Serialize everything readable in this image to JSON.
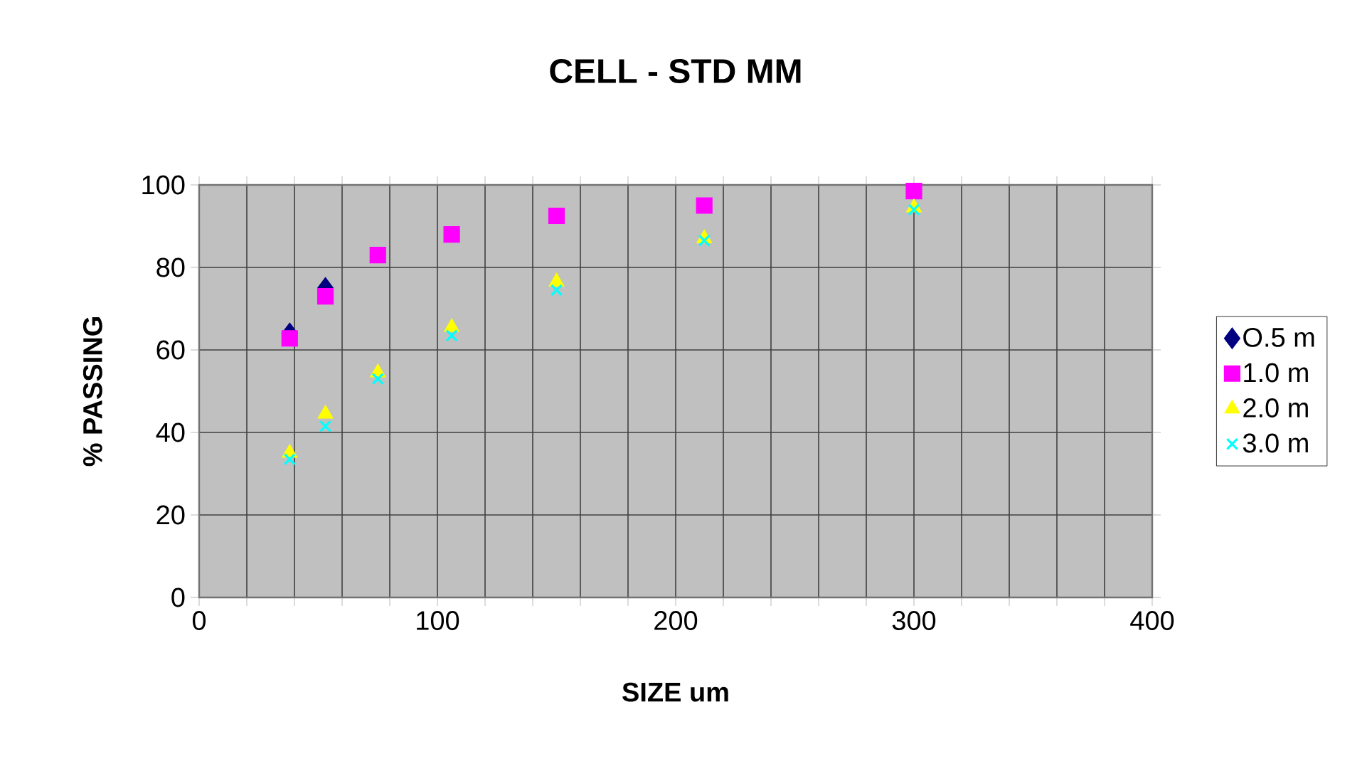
{
  "chart_data": {
    "type": "scatter",
    "title": "CELL  - STD MM",
    "xlabel": "SIZE um",
    "ylabel": "% PASSING",
    "x": [
      38,
      53,
      75,
      106,
      150,
      212,
      300
    ],
    "series": [
      {
        "name": "O.5 m",
        "color": "#000080",
        "marker": "diamond",
        "values": [
          64,
          75,
          null,
          null,
          null,
          null,
          null
        ]
      },
      {
        "name": "1.0 m",
        "color": "#ff00ff",
        "marker": "square",
        "values": [
          62.8,
          73,
          83,
          88,
          92.5,
          95,
          98.5
        ]
      },
      {
        "name": "2.0 m",
        "color": "#ffff00",
        "marker": "triangle",
        "values": [
          35,
          44.5,
          54.5,
          65.5,
          76.5,
          87,
          94.5
        ]
      },
      {
        "name": "3.0 m",
        "color": "#00ffff",
        "marker": "cross",
        "values": [
          33.5,
          41.5,
          53,
          63.5,
          74.5,
          86.5,
          94
        ]
      }
    ],
    "xlim": [
      0,
      400
    ],
    "xticks": [
      0,
      {
        "value": 20,
        "label": null
      },
      {
        "value": 40,
        "label": null
      },
      {
        "value": 60,
        "label": null
      },
      {
        "value": 80,
        "label": null
      },
      100,
      {
        "value": 120,
        "label": null
      },
      {
        "value": 140,
        "label": null
      },
      {
        "value": 160,
        "label": null
      },
      {
        "value": 180,
        "label": null
      },
      200,
      {
        "value": 220,
        "label": null
      },
      {
        "value": 240,
        "label": null
      },
      {
        "value": 260,
        "label": null
      },
      {
        "value": 280,
        "label": null
      },
      300,
      {
        "value": 320,
        "label": null
      },
      {
        "value": 340,
        "label": null
      },
      {
        "value": 360,
        "label": null
      },
      {
        "value": 380,
        "label": null
      },
      400
    ],
    "ylim": [
      0,
      100
    ],
    "yticks": [
      0,
      20,
      40,
      60,
      80,
      100
    ],
    "grid": true,
    "legend": "right"
  }
}
